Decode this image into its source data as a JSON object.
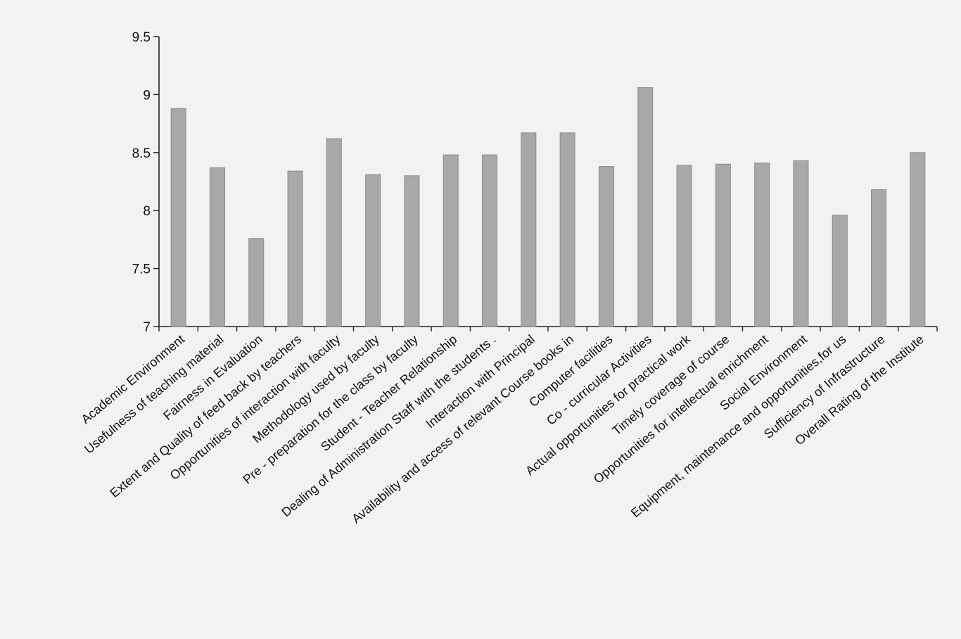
{
  "chart_data": {
    "type": "bar",
    "title": "",
    "xlabel": "",
    "ylabel": "",
    "ylim": [
      7,
      9.5
    ],
    "yticks": [
      "7",
      "7.5",
      "8",
      "8.5",
      "9",
      "9.5"
    ],
    "grid": false,
    "categories": [
      "Academic Environment",
      "Usefulness of teaching material",
      "Fairness in Evaluation",
      "Extent and Quality of feed back by teachers",
      "Opportunities of interaction with faculty",
      "Methodology used by faculty",
      "Pre - preparation for the class by faculty",
      "Student - Teacher Relationship",
      "Dealing of Administration Staff with the students .",
      "Interaction with Principal",
      "Availability and access of relevant Course books in",
      "Computer facilities",
      "Co - curricular Activities",
      "Actual opportunities for practical work",
      "Timely coverage of course",
      "Opportunities for intellectual enrichment",
      "Social Environment",
      "Equipment, maintenance and opportunities,for us",
      "Sufficiency of Infrastructure",
      "Overall Rating of the Institute"
    ],
    "values": [
      8.88,
      8.37,
      7.76,
      8.34,
      8.62,
      8.31,
      8.3,
      8.48,
      8.48,
      8.67,
      8.67,
      8.38,
      9.06,
      8.39,
      8.4,
      8.41,
      8.43,
      7.96,
      8.18,
      8.5
    ]
  }
}
